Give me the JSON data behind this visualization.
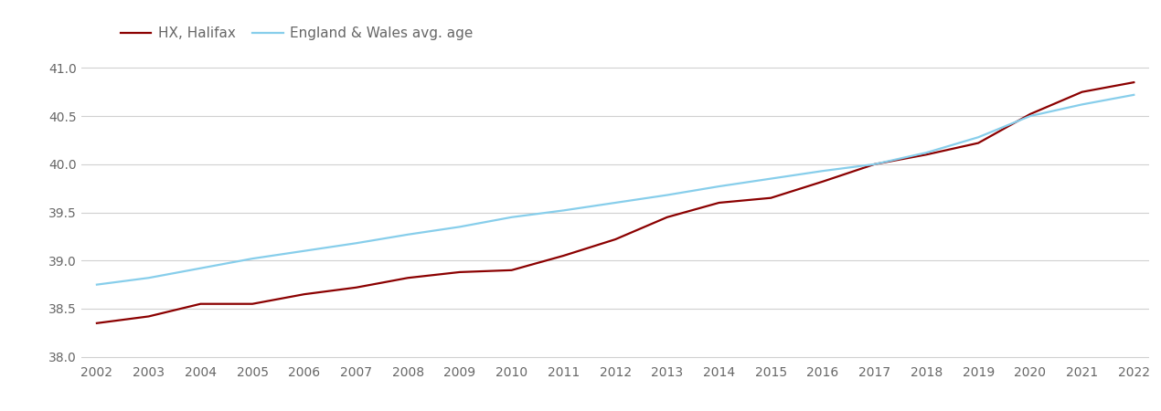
{
  "years": [
    2002,
    2003,
    2004,
    2005,
    2006,
    2007,
    2008,
    2009,
    2010,
    2011,
    2012,
    2013,
    2014,
    2015,
    2016,
    2017,
    2018,
    2019,
    2020,
    2021,
    2022
  ],
  "halifax": [
    38.35,
    38.42,
    38.55,
    38.55,
    38.65,
    38.72,
    38.82,
    38.88,
    38.9,
    39.05,
    39.22,
    39.45,
    39.6,
    39.65,
    39.82,
    40.0,
    40.1,
    40.22,
    40.52,
    40.75,
    40.85
  ],
  "england_wales": [
    38.75,
    38.82,
    38.92,
    39.02,
    39.1,
    39.18,
    39.27,
    39.35,
    39.45,
    39.52,
    39.6,
    39.68,
    39.77,
    39.85,
    39.93,
    40.0,
    40.12,
    40.28,
    40.5,
    40.62,
    40.72
  ],
  "halifax_color": "#8b0000",
  "england_wales_color": "#87CEEB",
  "halifax_label": "HX, Halifax",
  "england_wales_label": "England & Wales avg. age",
  "ylim": [
    37.95,
    41.15
  ],
  "yticks": [
    38.0,
    38.5,
    39.0,
    39.5,
    40.0,
    40.5,
    41.0
  ],
  "background_color": "#ffffff",
  "grid_color": "#d0d0d0",
  "line_width": 1.6,
  "legend_fontsize": 11,
  "tick_fontsize": 10,
  "tick_color": "#666666"
}
